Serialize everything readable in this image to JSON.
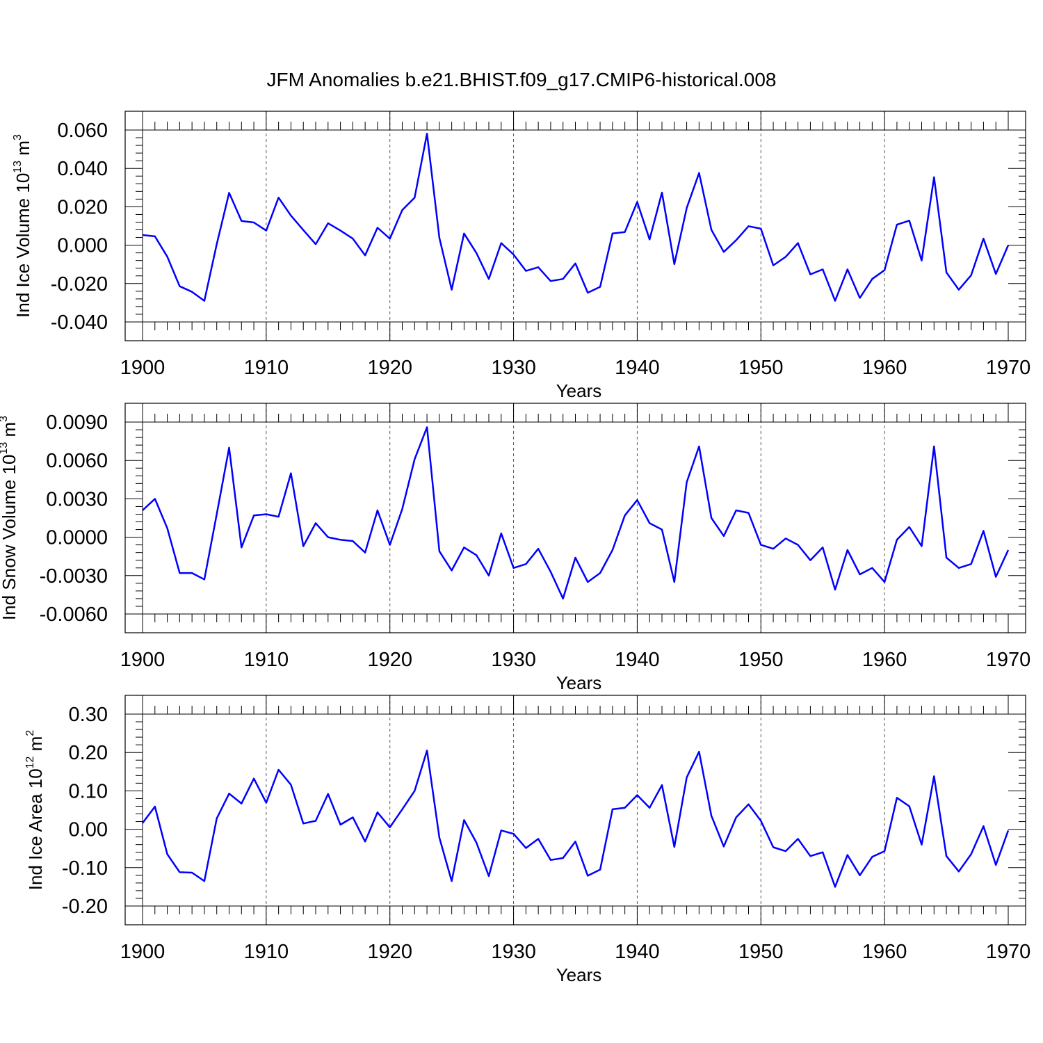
{
  "title": "JFM Anomalies b.e21.BHIST.f09_g17.CMIP6-historical.008",
  "series_color": "#0000ff",
  "chart_data": [
    {
      "type": "line",
      "ylabel": "Ind Ice Volume 10",
      "ylabel_exp": "13",
      "ylabel_unit": " m",
      "ylabel_unit_exp": "3",
      "xlabel": "Years",
      "xlim": [
        1900,
        1970
      ],
      "ylim": [
        -0.04,
        0.06
      ],
      "yticks": [
        -0.04,
        -0.02,
        0.0,
        0.02,
        0.04,
        0.06
      ],
      "ytick_labels": [
        "-0.040",
        "-0.020",
        "0.000",
        "0.020",
        "0.040",
        "0.060"
      ],
      "xticks": [
        1900,
        1910,
        1920,
        1930,
        1940,
        1950,
        1960,
        1970
      ],
      "xtick_labels": [
        "1900",
        "1910",
        "1920",
        "1930",
        "1940",
        "1950",
        "1960",
        "1970"
      ],
      "x_start": 1900,
      "values": [
        0.0053,
        0.0046,
        -0.006,
        -0.0214,
        -0.0243,
        -0.029,
        0.0005,
        0.0273,
        0.0126,
        0.0118,
        0.0076,
        0.0248,
        0.0154,
        0.0079,
        0.0005,
        0.0114,
        0.0076,
        0.0034,
        -0.0053,
        0.0091,
        0.0034,
        0.0183,
        0.0248,
        0.0581,
        0.0038,
        -0.0232,
        0.0061,
        -0.0041,
        -0.0176,
        0.0011,
        -0.0049,
        -0.0134,
        -0.0115,
        -0.0187,
        -0.0176,
        -0.0095,
        -0.0248,
        -0.0217,
        0.0061,
        0.0068,
        0.0225,
        0.003,
        0.0274,
        -0.0099,
        0.0194,
        0.0376,
        0.008,
        -0.0035,
        0.0026,
        0.0099,
        0.0086,
        -0.0105,
        -0.0061,
        0.0011,
        -0.0152,
        -0.0126,
        -0.029,
        -0.0126,
        -0.0275,
        -0.0176,
        -0.013,
        0.0107,
        0.0128,
        -0.008,
        0.0354,
        -0.0142,
        -0.0232,
        -0.0157,
        0.0034,
        -0.015,
        0.0
      ]
    },
    {
      "type": "line",
      "ylabel": "Ind Snow Volume 10",
      "ylabel_exp": "13",
      "ylabel_unit": " m",
      "ylabel_unit_exp": "3",
      "xlabel": "Years",
      "xlim": [
        1900,
        1970
      ],
      "ylim": [
        -0.006,
        0.009
      ],
      "yticks": [
        -0.006,
        -0.003,
        0.0,
        0.003,
        0.006,
        0.009
      ],
      "ytick_labels": [
        "-0.0060",
        "-0.0030",
        "0.0000",
        "0.0030",
        "0.0060",
        "0.0090"
      ],
      "xticks": [
        1900,
        1910,
        1920,
        1930,
        1940,
        1950,
        1960,
        1970
      ],
      "xtick_labels": [
        "1900",
        "1910",
        "1920",
        "1930",
        "1940",
        "1950",
        "1960",
        "1970"
      ],
      "x_start": 1900,
      "values": [
        0.0021,
        0.003,
        0.0007,
        -0.0028,
        -0.0028,
        -0.0033,
        0.0018,
        0.007,
        -0.0008,
        0.0017,
        0.0018,
        0.0016,
        0.005,
        -0.0007,
        0.0011,
        0.0,
        -0.0002,
        -0.0003,
        -0.0012,
        0.0021,
        -0.0006,
        0.0022,
        0.0061,
        0.0086,
        -0.0011,
        -0.0026,
        -0.0008,
        -0.0014,
        -0.003,
        0.0003,
        -0.0024,
        -0.0021,
        -0.0009,
        -0.0027,
        -0.0048,
        -0.0016,
        -0.0035,
        -0.0028,
        -0.001,
        0.0017,
        0.0029,
        0.0011,
        0.0006,
        -0.0035,
        0.0043,
        0.0071,
        0.0015,
        0.0001,
        0.0021,
        0.0019,
        -0.0006,
        -0.0009,
        -0.0001,
        -0.0006,
        -0.0018,
        -0.0008,
        -0.0041,
        -0.001,
        -0.0029,
        -0.0024,
        -0.0035,
        -0.0002,
        0.0008,
        -0.0007,
        0.0071,
        -0.0016,
        -0.0024,
        -0.0021,
        0.0005,
        -0.0031,
        -0.001
      ]
    },
    {
      "type": "line",
      "ylabel": "Ind Ice Area 10",
      "ylabel_exp": "12",
      "ylabel_unit": " m",
      "ylabel_unit_exp": "2",
      "xlabel": "Years",
      "xlim": [
        1900,
        1970
      ],
      "ylim": [
        -0.2,
        0.3
      ],
      "yticks": [
        -0.2,
        -0.1,
        0.0,
        0.1,
        0.2,
        0.3
      ],
      "ytick_labels": [
        "-0.20",
        "-0.10",
        "0.00",
        "0.10",
        "0.20",
        "0.30"
      ],
      "xticks": [
        1900,
        1910,
        1920,
        1930,
        1940,
        1950,
        1960,
        1970
      ],
      "xtick_labels": [
        "1900",
        "1910",
        "1920",
        "1930",
        "1940",
        "1950",
        "1960",
        "1970"
      ],
      "x_start": 1900,
      "values": [
        0.016,
        0.059,
        -0.065,
        -0.112,
        -0.113,
        -0.135,
        0.028,
        0.093,
        0.067,
        0.132,
        0.069,
        0.155,
        0.116,
        0.015,
        0.022,
        0.092,
        0.012,
        0.031,
        -0.032,
        0.044,
        0.005,
        0.052,
        0.1,
        0.205,
        -0.022,
        -0.135,
        0.024,
        -0.035,
        -0.122,
        -0.003,
        -0.012,
        -0.049,
        -0.025,
        -0.08,
        -0.075,
        -0.032,
        -0.121,
        -0.105,
        0.052,
        0.056,
        0.089,
        0.056,
        0.115,
        -0.046,
        0.135,
        0.202,
        0.035,
        -0.045,
        0.031,
        0.065,
        0.022,
        -0.047,
        -0.057,
        -0.025,
        -0.07,
        -0.06,
        -0.15,
        -0.067,
        -0.12,
        -0.072,
        -0.057,
        0.082,
        0.06,
        -0.04,
        0.138,
        -0.07,
        -0.11,
        -0.065,
        0.008,
        -0.093,
        -0.003
      ]
    }
  ]
}
